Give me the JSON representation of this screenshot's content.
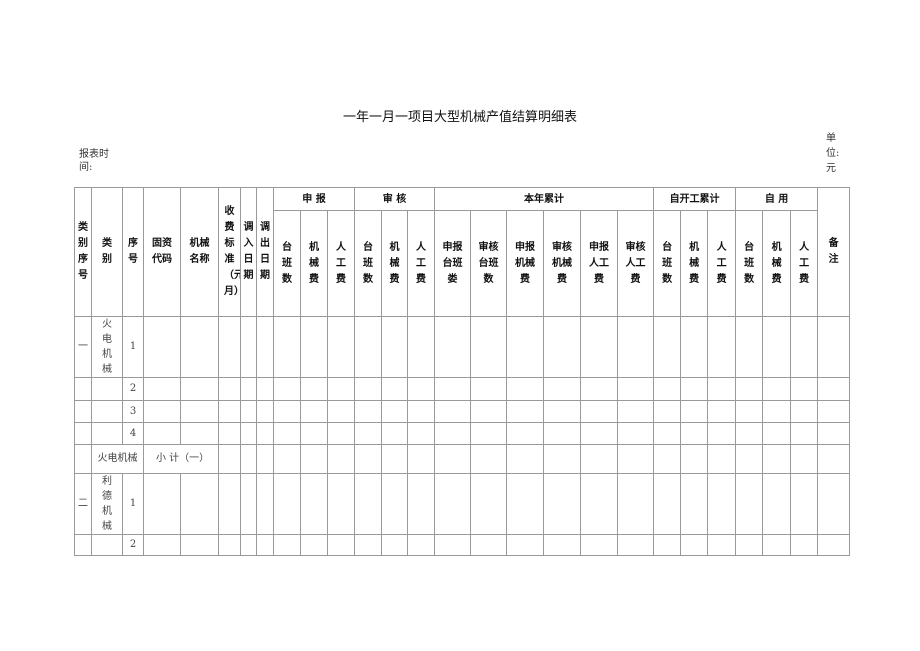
{
  "title": "一年一月一项目大型机械产值结算明细表",
  "report_time_label": "报表时间:",
  "unit_label": "单位:元",
  "header": {
    "fixed": [
      "类别序号",
      "类别",
      "序号",
      "固资代码",
      "机械名称",
      "收费标准（元/月）",
      "调入日期",
      "调出日期"
    ],
    "groups": [
      {
        "label": "申 报",
        "subs": [
          "台班数",
          "机械费",
          "人工费"
        ]
      },
      {
        "label": "审 核",
        "subs": [
          "台班数",
          "机械费",
          "人工费"
        ]
      },
      {
        "label": "本年累计",
        "subs": [
          "申报台班娄",
          "审核台班数",
          "申报机械费",
          "审核机械费",
          "申报人工费",
          "审核人工费"
        ]
      },
      {
        "label": "自开工累计",
        "subs": [
          "台班数",
          "机械费",
          "人工费"
        ]
      },
      {
        "label": "自 用",
        "subs": [
          "台班数",
          "机械费",
          "人工费"
        ]
      }
    ],
    "remark": "备注"
  },
  "rows": [
    {
      "group_no": "一",
      "category": "火电机械",
      "seq": "1"
    },
    {
      "seq": "2"
    },
    {
      "seq": "3"
    },
    {
      "seq": "4"
    },
    {
      "subtotal_category": "火电机械",
      "subtotal_label": "小 计（一）"
    },
    {
      "group_no": "二",
      "category": "利德机械",
      "seq": "1"
    },
    {
      "seq": "2"
    }
  ]
}
